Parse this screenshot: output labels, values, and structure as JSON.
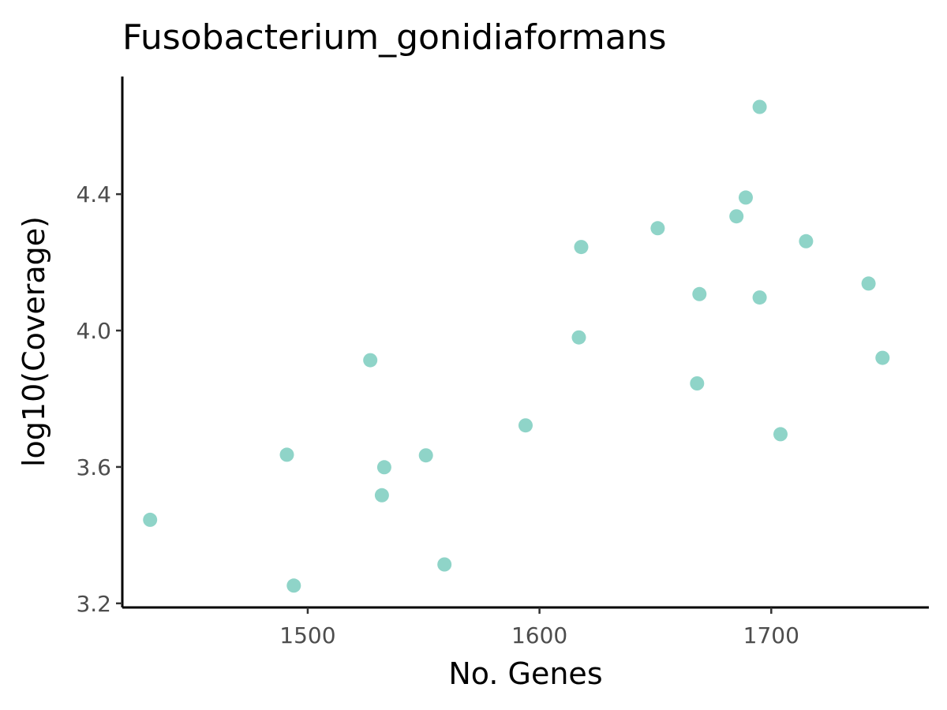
{
  "chart_data": {
    "type": "scatter",
    "title": "Fusobacterium_gonidiaformans",
    "xlabel": "No. Genes",
    "ylabel": "log10(Coverage)",
    "xlim": [
      1420,
      1768
    ],
    "ylim": [
      3.188,
      4.745
    ],
    "xticks": [
      1500,
      1600,
      1700
    ],
    "yticks": [
      3.2,
      3.6,
      4.0,
      4.4
    ],
    "xtick_labels": [
      "1500",
      "1600",
      "1700"
    ],
    "ytick_labels": [
      "3.2",
      "3.6",
      "4.0",
      "4.4"
    ],
    "grid": false,
    "legend": "none",
    "point_color": "#8fd4c8",
    "points": [
      {
        "x": 1432,
        "y": 3.445
      },
      {
        "x": 1491,
        "y": 3.636
      },
      {
        "x": 1494,
        "y": 3.252
      },
      {
        "x": 1527,
        "y": 3.913
      },
      {
        "x": 1532,
        "y": 3.517
      },
      {
        "x": 1533,
        "y": 3.599
      },
      {
        "x": 1551,
        "y": 3.634
      },
      {
        "x": 1559,
        "y": 3.314
      },
      {
        "x": 1594,
        "y": 3.722
      },
      {
        "x": 1617,
        "y": 3.98
      },
      {
        "x": 1618,
        "y": 4.245
      },
      {
        "x": 1651,
        "y": 4.3
      },
      {
        "x": 1668,
        "y": 3.845
      },
      {
        "x": 1669,
        "y": 4.107
      },
      {
        "x": 1685,
        "y": 4.335
      },
      {
        "x": 1689,
        "y": 4.39
      },
      {
        "x": 1695,
        "y": 4.656
      },
      {
        "x": 1695,
        "y": 4.097
      },
      {
        "x": 1704,
        "y": 3.696
      },
      {
        "x": 1715,
        "y": 4.262
      },
      {
        "x": 1742,
        "y": 4.138
      },
      {
        "x": 1748,
        "y": 3.92
      }
    ]
  }
}
